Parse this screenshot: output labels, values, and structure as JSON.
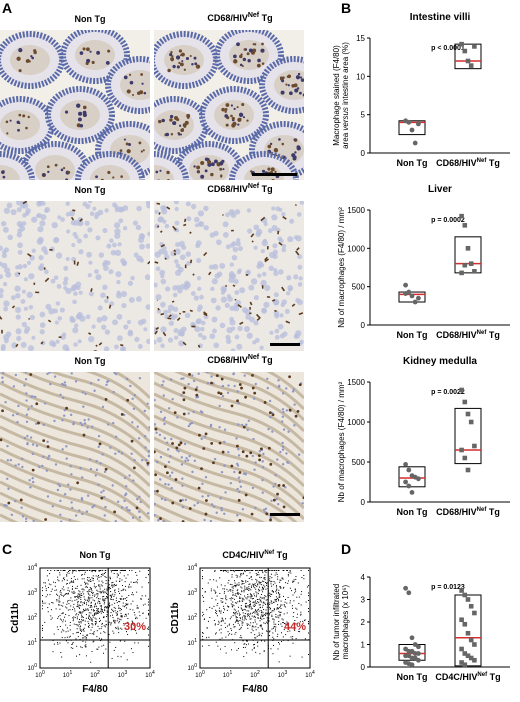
{
  "panels": {
    "A": {
      "letter": "A",
      "rows": [
        {
          "left_label": "Non Tg",
          "right_label_base": "CD68/HIV",
          "right_label_sup": "Nef",
          "right_label_tail": " Tg",
          "tissue": "intestine-villi"
        },
        {
          "left_label": "Non Tg",
          "right_label_base": "CD68/HIV",
          "right_label_sup": "Nef",
          "right_label_tail": " Tg",
          "tissue": "liver"
        },
        {
          "left_label": "Non Tg",
          "right_label_base": "CD68/HIV",
          "right_label_sup": "Nef",
          "right_label_tail": " Tg",
          "tissue": "kidney-medulla"
        }
      ]
    },
    "B": {
      "letter": "B"
    },
    "C": {
      "letter": "C",
      "plots": [
        {
          "title": "Non Tg",
          "percent": "30%",
          "ylabel": "Cd11b",
          "xlabel": "F4/80"
        },
        {
          "title_base": "CD4C/HIV",
          "title_sup": "Nef",
          "title_tail": " Tg",
          "percent": "44%",
          "ylabel": "CD11b",
          "xlabel": "F4/80"
        }
      ],
      "tick_exps": [
        "0",
        "1",
        "2",
        "3",
        "4"
      ],
      "tick_base": "10"
    },
    "D": {
      "letter": "D"
    }
  },
  "colors": {
    "median": "#d32f2f",
    "point": "#666666",
    "percent": "#c62828"
  },
  "chart_data": [
    {
      "type": "scatter",
      "title": "Intestine villi",
      "ylabel_parts": [
        "Macrophage stained (F4/80)",
        "area ",
        "versus",
        " intestine area (%)"
      ],
      "categories": [
        "Non Tg",
        "CD68/HIV Tg"
      ],
      "cat_labels": [
        {
          "base": "Non Tg",
          "sup": "",
          "tail": ""
        },
        {
          "base": "CD68/HIV",
          "sup": "Nef",
          "tail": " Tg"
        }
      ],
      "pvalue": "p < 0.0001",
      "ylim": [
        0,
        15
      ],
      "yticks": [
        0,
        5,
        10,
        15
      ],
      "series": [
        {
          "values": [
            4.2,
            4.0,
            3.0,
            1.3,
            3.8
          ],
          "median": 4.0,
          "box": [
            2.4,
            4.2
          ]
        },
        {
          "values": [
            14.2,
            13.3,
            12.0,
            11.4,
            13.9
          ],
          "median": 12.0,
          "box": [
            11.0,
            14.2
          ]
        }
      ]
    },
    {
      "type": "scatter",
      "title": "Liver",
      "ylabel_parts": [
        "Nb of macrophages (F4/80) / mm²"
      ],
      "categories": [
        "Non Tg",
        "CD68/HIV Tg"
      ],
      "cat_labels": [
        {
          "base": "Non Tg",
          "sup": "",
          "tail": ""
        },
        {
          "base": "CD68/HIV",
          "sup": "Nef",
          "tail": " Tg"
        }
      ],
      "pvalue": "p = 0.0002",
      "ylim": [
        0,
        1500
      ],
      "yticks": [
        0,
        500,
        1000,
        1500
      ],
      "series": [
        {
          "values": [
            520,
            430,
            380,
            300,
            350,
            410
          ],
          "median": 400,
          "box": [
            300,
            430
          ]
        },
        {
          "values": [
            1420,
            1300,
            1000,
            800,
            700,
            680,
            780
          ],
          "median": 800,
          "box": [
            680,
            1150
          ]
        }
      ]
    },
    {
      "type": "scatter",
      "title": "Kidney medulla",
      "ylabel_parts": [
        "Nb of macrophages (F4/80) / mm²"
      ],
      "categories": [
        "Non Tg",
        "CD68/HIV Tg"
      ],
      "cat_labels": [
        {
          "base": "Non Tg",
          "sup": "",
          "tail": ""
        },
        {
          "base": "CD68/HIV",
          "sup": "Nef",
          "tail": " Tg"
        }
      ],
      "pvalue": "p = 0.0022",
      "ylim": [
        0,
        1500
      ],
      "yticks": [
        0,
        500,
        1000,
        1500
      ],
      "series": [
        {
          "values": [
            470,
            400,
            330,
            310,
            290,
            250,
            200,
            120
          ],
          "median": 300,
          "box": [
            190,
            440
          ]
        },
        {
          "values": [
            1400,
            1250,
            1100,
            1000,
            700,
            650,
            550,
            400
          ],
          "median": 650,
          "box": [
            480,
            1170
          ]
        }
      ]
    },
    {
      "type": "scatter",
      "title": "",
      "ylabel_parts": [
        "Nb of tumor infiltrated",
        "macrophages (x 10⁶)"
      ],
      "categories": [
        "Non Tg",
        "CD4C/HIV Tg"
      ],
      "cat_labels": [
        {
          "base": "Non Tg",
          "sup": "",
          "tail": ""
        },
        {
          "base": "CD4C/HIV",
          "sup": "Nef",
          "tail": " Tg"
        }
      ],
      "pvalue": "p = 0.0123",
      "ylim": [
        0,
        4
      ],
      "yticks": [
        0,
        1,
        2,
        3,
        4
      ],
      "series": [
        {
          "values": [
            3.5,
            3.3,
            1.3,
            1.0,
            0.9,
            0.8,
            0.7,
            0.7,
            0.6,
            0.6,
            0.5,
            0.5,
            0.4,
            0.4,
            0.3,
            0.2,
            0.15,
            0.1
          ],
          "median": 0.6,
          "box": [
            0.3,
            1.0
          ]
        },
        {
          "values": [
            3.4,
            3.2,
            3.0,
            2.7,
            2.4,
            2.1,
            1.9,
            1.5,
            1.2,
            1.0,
            0.8,
            0.6,
            0.5,
            0.4,
            0.3,
            0.2,
            0.1
          ],
          "median": 1.3,
          "box": [
            0.05,
            3.2
          ]
        }
      ]
    }
  ]
}
